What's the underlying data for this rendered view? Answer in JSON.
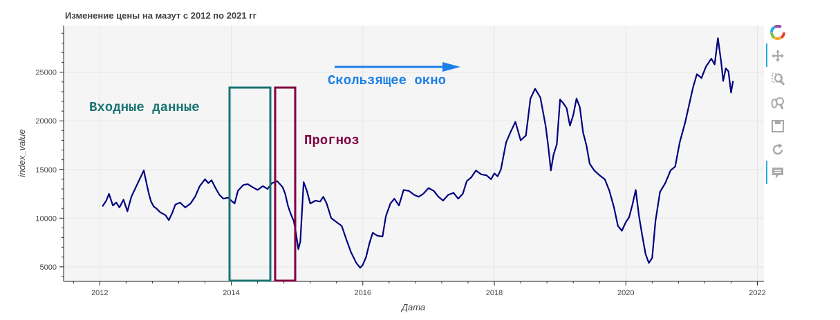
{
  "chart_data": {
    "type": "line",
    "title": "Изменение цены на мазут с 2012 по 2021 гг",
    "xlabel": "Дата",
    "ylabel": "index_value",
    "xlim": [
      2011.45,
      2022.1
    ],
    "ylim": [
      3500,
      29800
    ],
    "x_ticks": [
      2012,
      2014,
      2016,
      2018,
      2020,
      2022
    ],
    "x_tick_labels": [
      "2012",
      "2014",
      "2016",
      "2018",
      "2020",
      "2022"
    ],
    "y_ticks": [
      5000,
      10000,
      15000,
      20000,
      25000
    ],
    "y_tick_labels": [
      "5000",
      "10000",
      "15000",
      "20000",
      "25000"
    ],
    "grid": true,
    "line_color": "#000080",
    "series": [
      {
        "x": [
          2012.04,
          2012.1,
          2012.14,
          2012.2,
          2012.25,
          2012.3,
          2012.36,
          2012.42,
          2012.48,
          2012.55,
          2012.62,
          2012.67,
          2012.72,
          2012.75,
          2012.78,
          2012.82,
          2012.86,
          2012.92,
          2013.0,
          2013.05,
          2013.1,
          2013.15,
          2013.22,
          2013.3,
          2013.38,
          2013.45,
          2013.52,
          2013.6,
          2013.65,
          2013.7,
          2013.76,
          2013.82,
          2013.88,
          2013.95,
          2014.0,
          2014.05,
          2014.1,
          2014.18,
          2014.25,
          2014.32,
          2014.4,
          2014.48,
          2014.55,
          2014.62,
          2014.7,
          2014.78,
          2014.82,
          2014.86,
          2014.9,
          2014.95,
          2014.98,
          2015.02,
          2015.05,
          2015.1,
          2015.15,
          2015.2,
          2015.28,
          2015.35,
          2015.4,
          2015.45,
          2015.52,
          2015.6,
          2015.68,
          2015.75,
          2015.82,
          2015.9,
          2015.96,
          2016.0,
          2016.05,
          2016.1,
          2016.15,
          2016.22,
          2016.3,
          2016.35,
          2016.42,
          2016.48,
          2016.55,
          2016.62,
          2016.7,
          2016.78,
          2016.85,
          2016.92,
          2017.0,
          2017.08,
          2017.15,
          2017.22,
          2017.3,
          2017.38,
          2017.45,
          2017.52,
          2017.58,
          2017.65,
          2017.72,
          2017.8,
          2017.88,
          2017.95,
          2018.0,
          2018.05,
          2018.1,
          2018.18,
          2018.25,
          2018.32,
          2018.4,
          2018.48,
          2018.55,
          2018.62,
          2018.7,
          2018.78,
          2018.82,
          2018.86,
          2018.9,
          2018.95,
          2019.0,
          2019.05,
          2019.1,
          2019.15,
          2019.2,
          2019.25,
          2019.3,
          2019.35,
          2019.4,
          2019.45,
          2019.52,
          2019.6,
          2019.68,
          2019.75,
          2019.82,
          2019.88,
          2019.94,
          2020.0,
          2020.05,
          2020.1,
          2020.15,
          2020.2,
          2020.25,
          2020.3,
          2020.35,
          2020.4,
          2020.45,
          2020.52,
          2020.6,
          2020.68,
          2020.75,
          2020.82,
          2020.9,
          2020.96,
          2021.02,
          2021.08,
          2021.15,
          2021.22,
          2021.3,
          2021.35,
          2021.4,
          2021.45,
          2021.48,
          2021.52,
          2021.56,
          2021.6,
          2021.63
        ],
        "values": [
          11200,
          11800,
          12500,
          11300,
          11600,
          11100,
          11900,
          10700,
          12200,
          13200,
          14200,
          14900,
          13300,
          12400,
          11700,
          11200,
          11000,
          10600,
          10300,
          9800,
          10500,
          11400,
          11600,
          11100,
          11500,
          12200,
          13300,
          14000,
          13600,
          13900,
          13100,
          12400,
          12000,
          12100,
          11800,
          11500,
          12800,
          13400,
          13500,
          13200,
          12900,
          13300,
          13000,
          13600,
          13800,
          13200,
          12500,
          11300,
          10500,
          9700,
          8600,
          6800,
          7600,
          13700,
          12800,
          11500,
          11800,
          11700,
          12200,
          11500,
          10000,
          9600,
          9200,
          7800,
          6500,
          5400,
          4900,
          5200,
          6000,
          7400,
          8500,
          8200,
          8100,
          10200,
          11500,
          12000,
          11300,
          12900,
          12800,
          12400,
          12200,
          12500,
          13100,
          12800,
          12200,
          11800,
          12400,
          12600,
          12000,
          12500,
          13800,
          14200,
          14900,
          14500,
          14400,
          14000,
          14600,
          14300,
          15000,
          17800,
          18900,
          19900,
          18000,
          18500,
          22300,
          23300,
          22400,
          19500,
          17400,
          14900,
          16500,
          17600,
          22200,
          21800,
          21300,
          19500,
          20600,
          22300,
          21400,
          18800,
          17500,
          15600,
          14900,
          14400,
          14000,
          12800,
          11100,
          9200,
          8700,
          9600,
          10100,
          11400,
          12900,
          10200,
          8200,
          6300,
          5400,
          5900,
          9700,
          12700,
          13600,
          14900,
          15300,
          17800,
          19800,
          21600,
          23400,
          24800,
          24400,
          25600,
          26400,
          25800,
          28500,
          26000,
          24100,
          25400,
          25100,
          22900,
          24100
        ]
      }
    ]
  },
  "annotations": {
    "window_label": "Скользящее окно",
    "input_label": "Входные данные",
    "forecast_label": "Прогноз",
    "window_color": "#1a7fe6",
    "input_color": "#1a7373",
    "forecast_color": "#800040"
  },
  "toolbar": {
    "tools": [
      "bokeh-logo-icon",
      "pan-icon",
      "box-zoom-icon",
      "wheel-zoom-icon",
      "save-icon",
      "reset-icon",
      "hover-icon"
    ]
  }
}
